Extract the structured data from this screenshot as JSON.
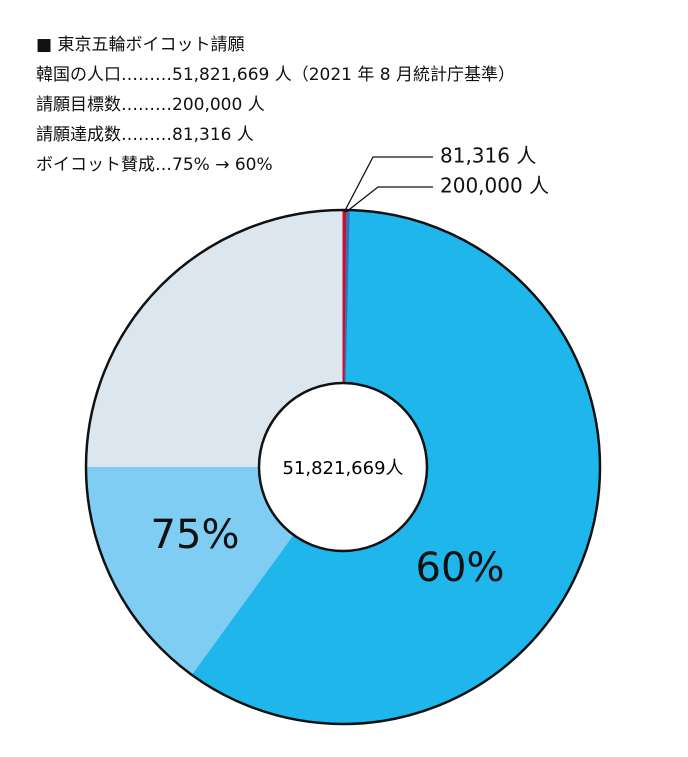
{
  "chart_data": {
    "type": "donut",
    "header": [
      "■ 東京五輪ボイコット請願",
      "韓国の人口………51,821,669 人（2021 年 8 月統計庁基準）",
      "請願目標数………200,000 人",
      "請願達成数………81,316 人",
      "ボイコット賛成…75% → 60%"
    ],
    "population": {
      "value": 51821669,
      "label": "51,821,669人"
    },
    "percent_wedges": [
      {
        "value": 75,
        "label": "75%",
        "color": "#80cdf3"
      },
      {
        "value": 60,
        "label": "60%",
        "color": "#1fb6ec"
      }
    ],
    "count_wedges": [
      {
        "value": 200000,
        "label": "200,000 人",
        "color": "#3a6fb5"
      },
      {
        "value": 81316,
        "label": "81,316 人",
        "color": "#c8102e"
      }
    ],
    "base_color": "#dce6ee"
  }
}
